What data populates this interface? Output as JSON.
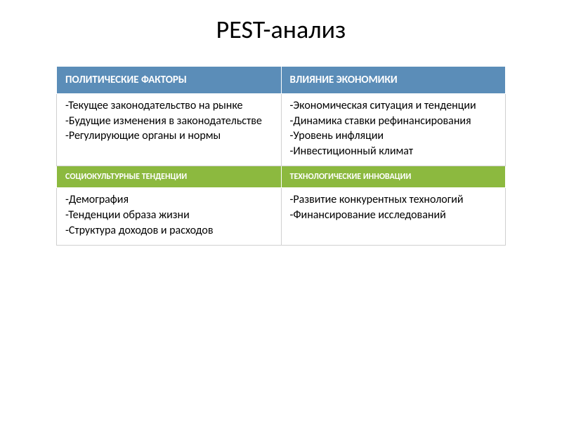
{
  "title": "PEST-анализ",
  "table": {
    "colors": {
      "header_blue_bg": "#5b8db8",
      "header_green_bg": "#8cb93f",
      "header_fg": "#ffffff",
      "cell_bg": "#ffffff",
      "cell_fg": "#000000",
      "border": "#d0d0d0"
    },
    "typography": {
      "title_fontsize": 36,
      "header_blue_fontsize": 15,
      "header_green_fontsize": 12,
      "cell_fontsize": 16
    },
    "rows": [
      {
        "type": "header",
        "style": "blue",
        "cells": [
          "ПОЛИТИЧЕСКИЕ ФАКТОРЫ",
          "ВЛИЯНИЕ ЭКОНОМИКИ"
        ]
      },
      {
        "type": "content",
        "cells": [
          "-Текущее законодательство на рынке\n-Будущие изменения в законодательстве\n-Регулирующие органы и нормы",
          "-Экономическая ситуация и тенденции\n-Динамика ставки рефинансирования\n-Уровень инфляции\n-Инвестиционный климат"
        ]
      },
      {
        "type": "header",
        "style": "green",
        "cells": [
          "СОЦИОКУЛЬТУРНЫЕ ТЕНДЕНЦИИ",
          "ТЕХНОЛОГИЧЕСКИЕ ИННОВАЦИИ"
        ]
      },
      {
        "type": "content",
        "cells": [
          "-Демография\n-Тенденции образа жизни\n-Структура доходов и расходов",
          "-Развитие конкурентных технологий\n-Финансирование исследований"
        ]
      }
    ]
  }
}
